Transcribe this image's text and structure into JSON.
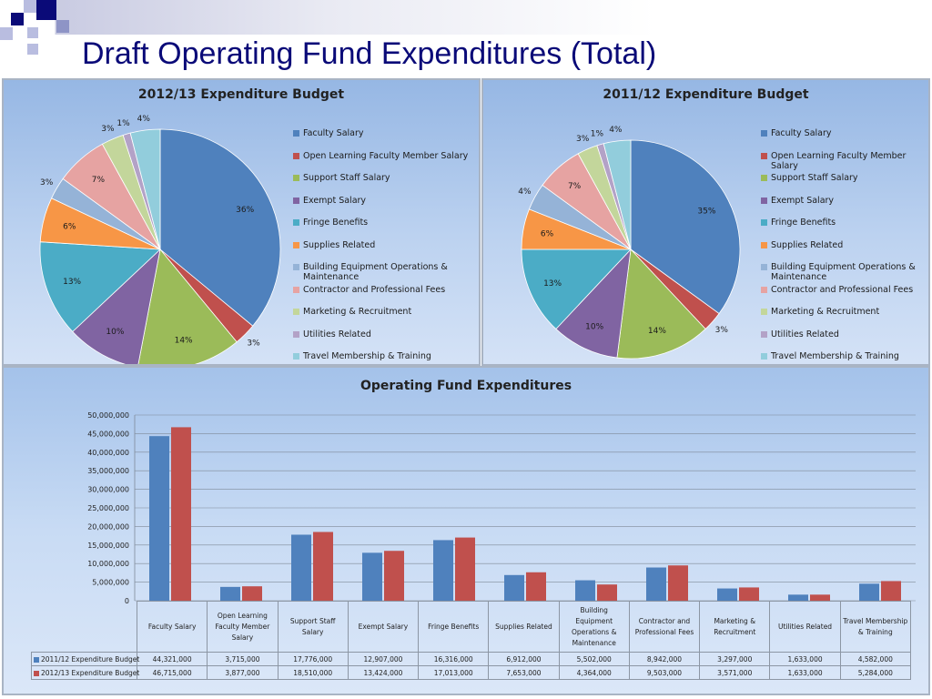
{
  "slide": {
    "title": "Draft Operating Fund Expenditures (Total)"
  },
  "colors": {
    "title": "#0a0a78",
    "deco_dark": "#0a0a78",
    "deco_light": "#8e94c6",
    "series_2011": "#4f81bd",
    "series_2012": "#c0504d"
  },
  "chart_data": [
    {
      "type": "pie",
      "title": "2012/13 Expenditure Budget",
      "legend_position": "right",
      "categories": [
        "Faculty Salary",
        "Open Learning Faculty Member Salary",
        "Support Staff Salary",
        "Exempt Salary",
        "Fringe Benefits",
        "Supplies Related",
        "Building Equipment Operations & Maintenance",
        "Contractor and Professional Fees",
        "Marketing & Recruitment",
        "Utilities Related",
        "Travel Membership & Training"
      ],
      "values": [
        36,
        3,
        14,
        10,
        13,
        6,
        3,
        7,
        3,
        1,
        4
      ],
      "value_labels": [
        "36%",
        "3%",
        "14%",
        "10%",
        "13%",
        "6%",
        "3%",
        "7%",
        "3%",
        "1%",
        "4%"
      ],
      "colors": [
        "#4f81bd",
        "#c0504d",
        "#9bbb59",
        "#8064a2",
        "#4bacc6",
        "#f79646",
        "#95b3d7",
        "#e6a3a2",
        "#c3d69b",
        "#b3a2c7",
        "#92cddc"
      ]
    },
    {
      "type": "pie",
      "title": "2011/12 Expenditure Budget",
      "legend_position": "right",
      "categories": [
        "Faculty Salary",
        "Open Learning Faculty Member Salary",
        "Support Staff Salary",
        "Exempt Salary",
        "Fringe Benefits",
        "Supplies Related",
        "Building Equipment Operations & Maintenance",
        "Contractor and Professional Fees",
        "Marketing & Recruitment",
        "Utilities Related",
        "Travel Membership & Training"
      ],
      "values": [
        35,
        3,
        14,
        10,
        13,
        6,
        4,
        7,
        3,
        1,
        4
      ],
      "value_labels": [
        "35%",
        "3%",
        "14%",
        "10%",
        "13%",
        "6%",
        "4%",
        "7%",
        "3%",
        "1%",
        "4%"
      ],
      "colors": [
        "#4f81bd",
        "#c0504d",
        "#9bbb59",
        "#8064a2",
        "#4bacc6",
        "#f79646",
        "#95b3d7",
        "#e6a3a2",
        "#c3d69b",
        "#b3a2c7",
        "#92cddc"
      ]
    },
    {
      "type": "bar",
      "title": "Operating Fund Expenditures",
      "ylim": [
        0,
        50000000
      ],
      "yticks": [
        0,
        5000000,
        10000000,
        15000000,
        20000000,
        25000000,
        30000000,
        35000000,
        40000000,
        45000000,
        50000000
      ],
      "ytick_labels": [
        "0",
        "5,000,000",
        "10,000,000",
        "15,000,000",
        "20,000,000",
        "25,000,000",
        "30,000,000",
        "35,000,000",
        "40,000,000",
        "45,000,000",
        "50,000,000"
      ],
      "grid": true,
      "categories": [
        "Faculty Salary",
        "Open Learning Faculty Member Salary",
        "Support Staff Salary",
        "Exempt Salary",
        "Fringe Benefits",
        "Supplies Related",
        "Building Equipment Operations & Maintenance",
        "Contractor and Professional Fees",
        "Marketing & Recruitment",
        "Utilities Related",
        "Travel Membership & Training"
      ],
      "series": [
        {
          "name": "2011/12 Expenditure Budget",
          "color": "#4f81bd",
          "values": [
            44321000,
            3715000,
            17776000,
            12907000,
            16316000,
            6912000,
            5502000,
            8942000,
            3297000,
            1633000,
            4582000
          ],
          "value_labels": [
            "44,321,000",
            "3,715,000",
            "17,776,000",
            "12,907,000",
            "16,316,000",
            "6,912,000",
            "5,502,000",
            "8,942,000",
            "3,297,000",
            "1,633,000",
            "4,582,000"
          ]
        },
        {
          "name": "2012/13 Expenditure Budget",
          "color": "#c0504d",
          "values": [
            46715000,
            3877000,
            18510000,
            13424000,
            17013000,
            7653000,
            4364000,
            9503000,
            3571000,
            1633000,
            5284000
          ],
          "value_labels": [
            "46,715,000",
            "3,877,000",
            "18,510,000",
            "13,424,000",
            "17,013,000",
            "7,653,000",
            "4,364,000",
            "9,503,000",
            "3,571,000",
            "1,633,000",
            "5,284,000"
          ]
        }
      ]
    }
  ]
}
